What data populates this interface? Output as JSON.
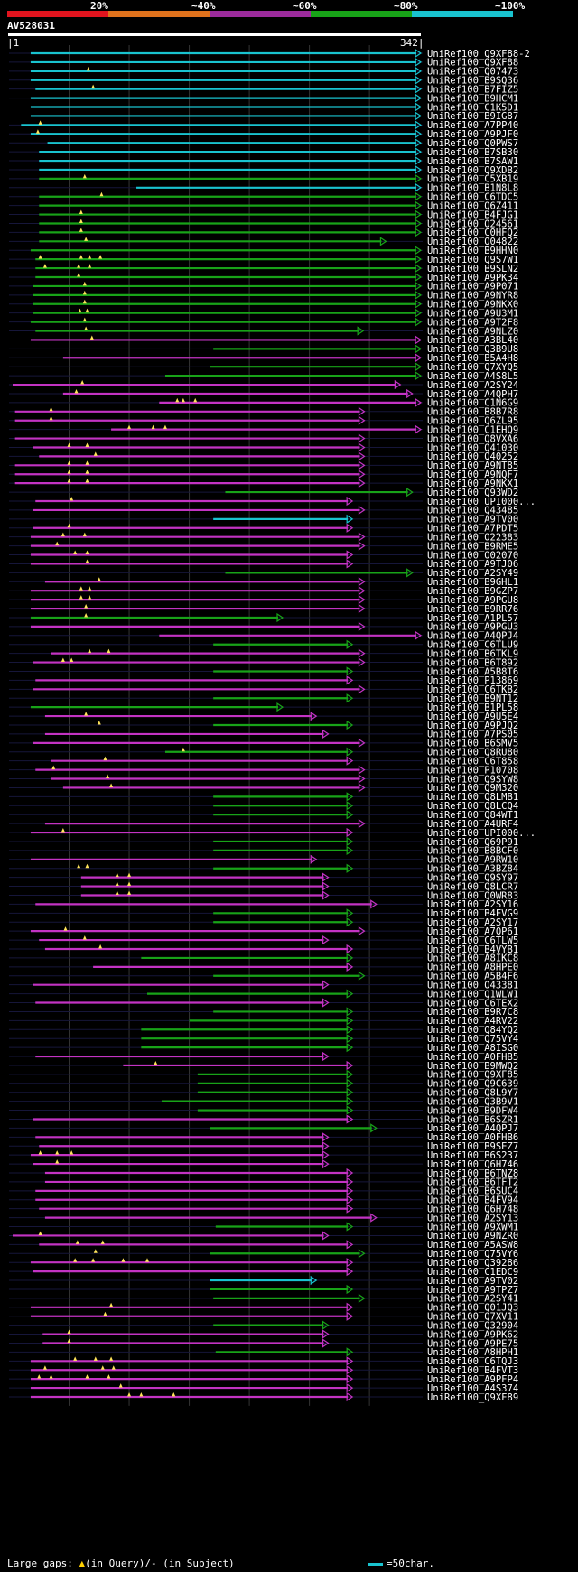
{
  "legend": {
    "items": [
      {
        "label": "20%",
        "color": "#e1141e"
      },
      {
        "label": "~40%",
        "color": "#e0721c"
      },
      {
        "label": "~60%",
        "color": "#9c2b9c"
      },
      {
        "label": "~80%",
        "color": "#18a318"
      },
      {
        "label": "~100%",
        "color": "#19c3cf"
      }
    ]
  },
  "query": {
    "id": "AV528031",
    "start": "1",
    "end": "342"
  },
  "footer": {
    "gaps_prefix": "Large gaps: ",
    "gaps_query": "(in Query)/",
    "gaps_subject": "- (in Subject)",
    "scale": "=50char."
  },
  "chart_data": {
    "type": "alignment",
    "title": "AV528031",
    "query_length": 342,
    "colors": {
      "c": "#19c3cf",
      "g": "#18a318",
      "m": "#c333c3"
    },
    "hits": [
      {
        "id": "UniRef100_Q9XF88-2",
        "s": 18,
        "e": 342,
        "k": "c"
      },
      {
        "id": "UniRef100_Q9XF88",
        "s": 18,
        "e": 342,
        "k": "c"
      },
      {
        "id": "UniRef100_Q07473",
        "s": 18,
        "e": 342,
        "k": "c",
        "t": [
          66
        ]
      },
      {
        "id": "UniRef100_B9SQ36",
        "s": 18,
        "e": 342,
        "k": "c"
      },
      {
        "id": "UniRef100_B7FIZ5",
        "s": 22,
        "e": 342,
        "k": "c",
        "t": [
          70
        ]
      },
      {
        "id": "UniRef100_B9HCM1",
        "s": 18,
        "e": 342,
        "k": "c"
      },
      {
        "id": "UniRef100_C1K5D1",
        "s": 18,
        "e": 342,
        "k": "c"
      },
      {
        "id": "UniRef100_B9IG87",
        "s": 18,
        "e": 342,
        "k": "c"
      },
      {
        "id": "UniRef100_A7PP40",
        "s": 10,
        "e": 342,
        "k": "c",
        "t": [
          26
        ]
      },
      {
        "id": "UniRef100_A9PJF0",
        "s": 18,
        "e": 342,
        "k": "c",
        "t": [
          24
        ]
      },
      {
        "id": "UniRef100_Q0PWS7",
        "s": 32,
        "e": 342,
        "k": "c"
      },
      {
        "id": "UniRef100_B7SB30",
        "s": 25,
        "e": 342,
        "k": "c"
      },
      {
        "id": "UniRef100_B7SAW1",
        "s": 25,
        "e": 342,
        "k": "c"
      },
      {
        "id": "UniRef100_Q9XDB2",
        "s": 25,
        "e": 342,
        "k": "c"
      },
      {
        "id": "UniRef100_C5XB19",
        "s": 25,
        "e": 342,
        "k": "g",
        "t": [
          63
        ]
      },
      {
        "id": "UniRef100_B1N8L8",
        "s": 106,
        "e": 342,
        "k": "c"
      },
      {
        "id": "UniRef100_C6TDC5",
        "s": 25,
        "e": 342,
        "k": "g",
        "t": [
          77
        ]
      },
      {
        "id": "UniRef100_Q6Z411",
        "s": 25,
        "e": 342,
        "k": "g"
      },
      {
        "id": "UniRef100_B4FJG1",
        "s": 25,
        "e": 342,
        "k": "g",
        "t": [
          60
        ]
      },
      {
        "id": "UniRef100_O24561",
        "s": 25,
        "e": 342,
        "k": "g",
        "t": [
          60
        ]
      },
      {
        "id": "UniRef100_C0HFQ2",
        "s": 25,
        "e": 342,
        "k": "g",
        "t": [
          60
        ]
      },
      {
        "id": "UniRef100_O04822",
        "s": 25,
        "e": 313,
        "k": "g",
        "t": [
          64
        ]
      },
      {
        "id": "UniRef100_B9HHN0",
        "s": 18,
        "e": 342,
        "k": "g"
      },
      {
        "id": "UniRef100_Q9S7W1",
        "s": 22,
        "e": 342,
        "k": "g",
        "t": [
          26,
          60,
          67,
          76
        ]
      },
      {
        "id": "UniRef100_B9SLN2",
        "s": 22,
        "e": 342,
        "k": "g",
        "t": [
          30,
          58,
          67
        ]
      },
      {
        "id": "UniRef100_A9PK34",
        "s": 22,
        "e": 342,
        "k": "g",
        "t": [
          58
        ]
      },
      {
        "id": "UniRef100_A9P071",
        "s": 20,
        "e": 342,
        "k": "g",
        "t": [
          63
        ]
      },
      {
        "id": "UniRef100_A9NYR8",
        "s": 20,
        "e": 342,
        "k": "g",
        "t": [
          63
        ]
      },
      {
        "id": "UniRef100_A9NKX0",
        "s": 20,
        "e": 342,
        "k": "g",
        "t": [
          63
        ]
      },
      {
        "id": "UniRef100_A9U3M1",
        "s": 20,
        "e": 342,
        "k": "g",
        "t": [
          59,
          65
        ]
      },
      {
        "id": "UniRef100_A9T2F8",
        "s": 18,
        "e": 342,
        "k": "g",
        "t": [
          63
        ]
      },
      {
        "id": "UniRef100_A9NLZ0",
        "s": 22,
        "e": 294,
        "k": "g",
        "t": [
          64
        ]
      },
      {
        "id": "UniRef100_A3BL40",
        "s": 18,
        "e": 342,
        "k": "m",
        "t": [
          69
        ]
      },
      {
        "id": "UniRef100_Q3B9U8",
        "s": 170,
        "e": 342,
        "k": "g"
      },
      {
        "id": "UniRef100_B5A4H8",
        "s": 45,
        "e": 342,
        "k": "m"
      },
      {
        "id": "UniRef100_Q7XYQ5",
        "s": 167,
        "e": 342,
        "k": "g"
      },
      {
        "id": "UniRef100_A4S8L5",
        "s": 130,
        "e": 342,
        "k": "g"
      },
      {
        "id": "UniRef100_A2SY24",
        "s": 3,
        "e": 325,
        "k": "m",
        "t": [
          61
        ]
      },
      {
        "id": "UniRef100_A4QPH7",
        "s": 45,
        "e": 335,
        "k": "m",
        "t": [
          56
        ]
      },
      {
        "id": "UniRef100_C1N6G9",
        "s": 125,
        "e": 342,
        "k": "m",
        "t": [
          140,
          145,
          155
        ]
      },
      {
        "id": "UniRef100_B8B7R8",
        "s": 5,
        "e": 295,
        "k": "m",
        "t": [
          35
        ]
      },
      {
        "id": "UniRef100_Q6ZL95",
        "s": 5,
        "e": 295,
        "k": "m",
        "t": [
          35
        ]
      },
      {
        "id": "UniRef100_C1EHQ9",
        "s": 85,
        "e": 342,
        "k": "m",
        "t": [
          100,
          120,
          130
        ]
      },
      {
        "id": "UniRef100_Q8VXA6",
        "s": 5,
        "e": 295,
        "k": "m"
      },
      {
        "id": "UniRef100_Q41030",
        "s": 20,
        "e": 295,
        "k": "m",
        "t": [
          50,
          65
        ]
      },
      {
        "id": "UniRef100_Q40252",
        "s": 25,
        "e": 295,
        "k": "m",
        "t": [
          72
        ]
      },
      {
        "id": "UniRef100_A9NT85",
        "s": 5,
        "e": 295,
        "k": "m",
        "t": [
          50,
          65
        ]
      },
      {
        "id": "UniRef100_A9NQF7",
        "s": 5,
        "e": 295,
        "k": "m",
        "t": [
          50,
          65
        ]
      },
      {
        "id": "UniRef100_A9NKX1",
        "s": 5,
        "e": 295,
        "k": "m",
        "t": [
          50,
          65
        ]
      },
      {
        "id": "UniRef100_Q93WD2",
        "s": 180,
        "e": 335,
        "k": "g"
      },
      {
        "id": "UniRef100_UPI000...",
        "s": 22,
        "e": 285,
        "k": "m",
        "t": [
          52
        ]
      },
      {
        "id": "UniRef100_Q43485",
        "s": 20,
        "e": 295,
        "k": "m"
      },
      {
        "id": "UniRef100_A9TV00",
        "s": 170,
        "e": 285,
        "k": "c"
      },
      {
        "id": "UniRef100_A7PDT5",
        "s": 20,
        "e": 285,
        "k": "m",
        "t": [
          50
        ]
      },
      {
        "id": "UniRef100_O22383",
        "s": 18,
        "e": 295,
        "k": "m",
        "t": [
          45,
          63
        ]
      },
      {
        "id": "UniRef100_B9RME5",
        "s": 18,
        "e": 295,
        "k": "m",
        "t": [
          40
        ]
      },
      {
        "id": "UniRef100_O02070",
        "s": 18,
        "e": 285,
        "k": "m",
        "t": [
          55,
          65
        ]
      },
      {
        "id": "UniRef100_A9TJ06",
        "s": 18,
        "e": 285,
        "k": "m",
        "t": [
          65
        ]
      },
      {
        "id": "UniRef100_A2SY49",
        "s": 180,
        "e": 335,
        "k": "g"
      },
      {
        "id": "UniRef100_B9GHL1",
        "s": 30,
        "e": 295,
        "k": "m",
        "t": [
          75
        ]
      },
      {
        "id": "UniRef100_B9GZP7",
        "s": 18,
        "e": 295,
        "k": "m",
        "t": [
          60,
          67
        ]
      },
      {
        "id": "UniRef100_A9PGU8",
        "s": 18,
        "e": 295,
        "k": "m",
        "t": [
          60,
          67
        ]
      },
      {
        "id": "UniRef100_B9RR76",
        "s": 18,
        "e": 295,
        "k": "m",
        "t": [
          64
        ]
      },
      {
        "id": "UniRef100_A1PL57",
        "s": 18,
        "e": 227,
        "k": "g",
        "t": [
          64
        ]
      },
      {
        "id": "UniRef100_A9PGU3",
        "s": 18,
        "e": 295,
        "k": "m"
      },
      {
        "id": "UniRef100_A4QPJ4",
        "s": 125,
        "e": 342,
        "k": "m"
      },
      {
        "id": "UniRef100_C6TLU9",
        "s": 170,
        "e": 285,
        "k": "g"
      },
      {
        "id": "UniRef100_B6TKL9",
        "s": 35,
        "e": 295,
        "k": "m",
        "t": [
          67,
          83
        ]
      },
      {
        "id": "UniRef100_B6T892",
        "s": 20,
        "e": 295,
        "k": "m",
        "t": [
          45,
          52
        ]
      },
      {
        "id": "UniRef100_A5B8T6",
        "s": 170,
        "e": 285,
        "k": "g"
      },
      {
        "id": "UniRef100_P13869",
        "s": 22,
        "e": 285,
        "k": "m"
      },
      {
        "id": "UniRef100_C6TKB2",
        "s": 20,
        "e": 295,
        "k": "m"
      },
      {
        "id": "UniRef100_B9NT12",
        "s": 170,
        "e": 285,
        "k": "g"
      },
      {
        "id": "UniRef100_B1PL58",
        "s": 18,
        "e": 227,
        "k": "g"
      },
      {
        "id": "UniRef100_A9U5E4",
        "s": 30,
        "e": 255,
        "k": "m",
        "t": [
          64
        ]
      },
      {
        "id": "UniRef100_A9PJQ2",
        "s": 170,
        "e": 285,
        "k": "g",
        "t": [
          75
        ]
      },
      {
        "id": "UniRef100_A7PS05",
        "s": 30,
        "e": 265,
        "k": "m"
      },
      {
        "id": "UniRef100_B6SMV5",
        "s": 20,
        "e": 295,
        "k": "m"
      },
      {
        "id": "UniRef100_Q8RU80",
        "s": 130,
        "e": 285,
        "k": "g",
        "t": [
          145
        ]
      },
      {
        "id": "UniRef100_C6T858",
        "s": 35,
        "e": 285,
        "k": "m",
        "t": [
          80
        ]
      },
      {
        "id": "UniRef100_P10708",
        "s": 22,
        "e": 295,
        "k": "m",
        "t": [
          37
        ]
      },
      {
        "id": "UniRef100_Q9SYW8",
        "s": 35,
        "e": 295,
        "k": "m",
        "t": [
          82
        ]
      },
      {
        "id": "UniRef100_Q9M320",
        "s": 45,
        "e": 295,
        "k": "m",
        "t": [
          85
        ]
      },
      {
        "id": "UniRef100_Q8LMB1",
        "s": 170,
        "e": 285,
        "k": "g"
      },
      {
        "id": "UniRef100_Q8LCQ4",
        "s": 170,
        "e": 285,
        "k": "g"
      },
      {
        "id": "UniRef100_Q84WT1",
        "s": 170,
        "e": 285,
        "k": "g"
      },
      {
        "id": "UniRef100_A4URF4",
        "s": 30,
        "e": 295,
        "k": "m"
      },
      {
        "id": "UniRef100_UPI000...",
        "s": 18,
        "e": 285,
        "k": "m",
        "t": [
          45
        ]
      },
      {
        "id": "UniRef100_Q69P91",
        "s": 170,
        "e": 285,
        "k": "g"
      },
      {
        "id": "UniRef100_B8BCF0",
        "s": 170,
        "e": 285,
        "k": "g"
      },
      {
        "id": "UniRef100_A9RW10",
        "s": 18,
        "e": 255,
        "k": "m"
      },
      {
        "id": "UniRef100_A3BZ84",
        "s": 170,
        "e": 285,
        "k": "g",
        "t": [
          58,
          65
        ]
      },
      {
        "id": "UniRef100_Q9SY97",
        "s": 60,
        "e": 265,
        "k": "m",
        "t": [
          90,
          100
        ]
      },
      {
        "id": "UniRef100_Q8LCR7",
        "s": 60,
        "e": 265,
        "k": "m",
        "t": [
          90,
          100
        ]
      },
      {
        "id": "UniRef100_Q0WR83",
        "s": 60,
        "e": 265,
        "k": "m",
        "t": [
          90,
          100
        ]
      },
      {
        "id": "UniRef100_A2SY16",
        "s": 22,
        "e": 305,
        "k": "m"
      },
      {
        "id": "UniRef100_B4FVG9",
        "s": 170,
        "e": 285,
        "k": "g"
      },
      {
        "id": "UniRef100_A2SY17",
        "s": 170,
        "e": 285,
        "k": "g"
      },
      {
        "id": "UniRef100_A7QP61",
        "s": 18,
        "e": 295,
        "k": "m",
        "t": [
          47
        ]
      },
      {
        "id": "UniRef100_C6TLW5",
        "s": 25,
        "e": 265,
        "k": "m",
        "t": [
          63
        ]
      },
      {
        "id": "UniRef100_B4VYB1",
        "s": 30,
        "e": 285,
        "k": "m",
        "t": [
          76
        ]
      },
      {
        "id": "UniRef100_A8IKC8",
        "s": 110,
        "e": 285,
        "k": "g"
      },
      {
        "id": "UniRef100_A8HPE0",
        "s": 70,
        "e": 285,
        "k": "m"
      },
      {
        "id": "UniRef100_A5B4F6",
        "s": 170,
        "e": 295,
        "k": "g"
      },
      {
        "id": "UniRef100_O43381",
        "s": 20,
        "e": 265,
        "k": "m"
      },
      {
        "id": "UniRef100_Q1WLW1",
        "s": 115,
        "e": 285,
        "k": "g"
      },
      {
        "id": "UniRef100_C6TEX2",
        "s": 22,
        "e": 265,
        "k": "m"
      },
      {
        "id": "UniRef100_B9R7C8",
        "s": 170,
        "e": 285,
        "k": "g"
      },
      {
        "id": "UniRef100_A4RV22",
        "s": 150,
        "e": 285,
        "k": "g"
      },
      {
        "id": "UniRef100_Q84YQ2",
        "s": 110,
        "e": 285,
        "k": "g"
      },
      {
        "id": "UniRef100_Q75VY4",
        "s": 110,
        "e": 285,
        "k": "g"
      },
      {
        "id": "UniRef100_A8ISG0",
        "s": 110,
        "e": 285,
        "k": "g"
      },
      {
        "id": "UniRef100_A0FHB5",
        "s": 22,
        "e": 265,
        "k": "m"
      },
      {
        "id": "UniRef100_B9MWQ2",
        "s": 95,
        "e": 285,
        "k": "m",
        "t": [
          122
        ]
      },
      {
        "id": "UniRef100_Q9XF85",
        "s": 157,
        "e": 285,
        "k": "g"
      },
      {
        "id": "UniRef100_Q9C639",
        "s": 157,
        "e": 285,
        "k": "g"
      },
      {
        "id": "UniRef100_Q8L9Y7",
        "s": 157,
        "e": 285,
        "k": "g"
      },
      {
        "id": "UniRef100_Q3B9V1",
        "s": 127,
        "e": 285,
        "k": "g"
      },
      {
        "id": "UniRef100_B9DFW4",
        "s": 157,
        "e": 285,
        "k": "g"
      },
      {
        "id": "UniRef100_B6SZR1",
        "s": 20,
        "e": 285,
        "k": "m"
      },
      {
        "id": "UniRef100_A4QPJ7",
        "s": 167,
        "e": 305,
        "k": "g"
      },
      {
        "id": "UniRef100_A0FHB6",
        "s": 22,
        "e": 265,
        "k": "m"
      },
      {
        "id": "UniRef100_B9SEZ7",
        "s": 25,
        "e": 265,
        "k": "m"
      },
      {
        "id": "UniRef100_B6S237",
        "s": 18,
        "e": 265,
        "k": "m",
        "t": [
          26,
          40,
          52
        ]
      },
      {
        "id": "UniRef100_Q6H746",
        "s": 20,
        "e": 265,
        "k": "m",
        "t": [
          40
        ]
      },
      {
        "id": "UniRef100_B6TNZ8",
        "s": 30,
        "e": 285,
        "k": "m"
      },
      {
        "id": "UniRef100_B6TFT2",
        "s": 30,
        "e": 285,
        "k": "m"
      },
      {
        "id": "UniRef100_B6SUC4",
        "s": 22,
        "e": 285,
        "k": "m"
      },
      {
        "id": "UniRef100_B4FV94",
        "s": 22,
        "e": 285,
        "k": "m"
      },
      {
        "id": "UniRef100_Q6H748",
        "s": 25,
        "e": 285,
        "k": "m"
      },
      {
        "id": "UniRef100_A2SY13",
        "s": 30,
        "e": 305,
        "k": "m"
      },
      {
        "id": "UniRef100_A9XWM1",
        "s": 172,
        "e": 285,
        "k": "g"
      },
      {
        "id": "UniRef100_A9NZR0",
        "s": 3,
        "e": 265,
        "k": "m",
        "t": [
          26
        ]
      },
      {
        "id": "UniRef100_A5ASW8",
        "s": 25,
        "e": 285,
        "k": "m",
        "t": [
          57,
          78
        ]
      },
      {
        "id": "UniRef100_Q75VY6",
        "s": 167,
        "e": 295,
        "k": "g",
        "t": [
          72
        ]
      },
      {
        "id": "UniRef100_Q39286",
        "s": 18,
        "e": 285,
        "k": "m",
        "t": [
          55,
          70,
          95,
          115
        ]
      },
      {
        "id": "UniRef100_C1EDC9",
        "s": 20,
        "e": 285,
        "k": "m"
      },
      {
        "id": "UniRef100_A9TV02",
        "s": 167,
        "e": 255,
        "k": "c"
      },
      {
        "id": "UniRef100_A9TPZ7",
        "s": 167,
        "e": 285,
        "k": "g"
      },
      {
        "id": "UniRef100_A2SY41",
        "s": 170,
        "e": 295,
        "k": "g"
      },
      {
        "id": "UniRef100_Q01JQ3",
        "s": 18,
        "e": 285,
        "k": "m",
        "t": [
          85
        ]
      },
      {
        "id": "UniRef100_Q7XV11",
        "s": 18,
        "e": 285,
        "k": "m",
        "t": [
          80
        ]
      },
      {
        "id": "UniRef100_Q32904",
        "s": 170,
        "e": 265,
        "k": "g"
      },
      {
        "id": "UniRef100_A9PK62",
        "s": 28,
        "e": 265,
        "k": "m",
        "t": [
          50
        ]
      },
      {
        "id": "UniRef100_A9PE75",
        "s": 28,
        "e": 265,
        "k": "m",
        "t": [
          50
        ]
      },
      {
        "id": "UniRef100_A8HPH1",
        "s": 172,
        "e": 285,
        "k": "g"
      },
      {
        "id": "UniRef100_C6TQJ3",
        "s": 18,
        "e": 285,
        "k": "m",
        "t": [
          55,
          72,
          85
        ]
      },
      {
        "id": "UniRef100_B4FVT3",
        "s": 18,
        "e": 285,
        "k": "m",
        "t": [
          30,
          78,
          87
        ]
      },
      {
        "id": "UniRef100_A9PFP4",
        "s": 18,
        "e": 285,
        "k": "m",
        "t": [
          25,
          35,
          65,
          83
        ]
      },
      {
        "id": "UniRef100_A4S374",
        "s": 18,
        "e": 285,
        "k": "m",
        "t": [
          93
        ]
      },
      {
        "id": "UniRef100_Q9XF89",
        "s": 18,
        "e": 285,
        "k": "m",
        "t": [
          100,
          110,
          137
        ]
      }
    ]
  }
}
